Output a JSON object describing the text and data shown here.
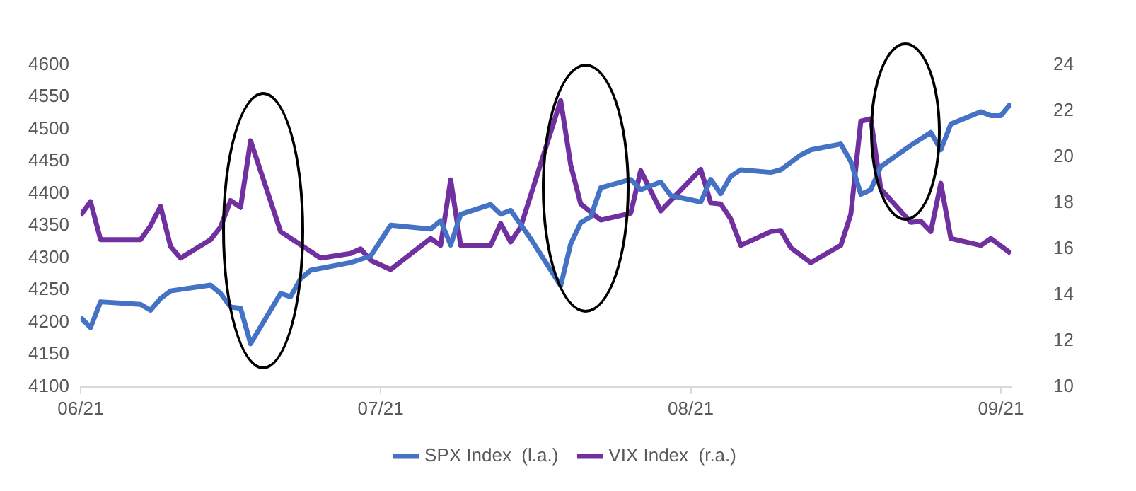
{
  "chart_data": {
    "type": "line",
    "legend": "bottom",
    "grid": false,
    "marker": "none",
    "line_style": "solid",
    "xlim": [
      "2021-06-01",
      "2021-09-02"
    ],
    "xticks": [
      {
        "value": "2021-06-01",
        "label": "06/21"
      },
      {
        "value": "2021-07-01",
        "label": "07/21"
      },
      {
        "value": "2021-08-01",
        "label": "08/21"
      },
      {
        "value": "2021-09-01",
        "label": "09/21"
      }
    ],
    "ylim": [
      4100,
      4600
    ],
    "yticks": [
      4100,
      4150,
      4200,
      4250,
      4300,
      4350,
      4400,
      4450,
      4500,
      4550,
      4600
    ],
    "y2lim": [
      10,
      24
    ],
    "y2ticks": [
      10,
      12,
      14,
      16,
      18,
      20,
      22,
      24
    ],
    "series": [
      {
        "name": "SPX Index  (l.a.)",
        "color": "#4472c4",
        "x": [
          "2021-06-01",
          "2021-06-02",
          "2021-06-03",
          "2021-06-07",
          "2021-06-08",
          "2021-06-09",
          "2021-06-10",
          "2021-06-14",
          "2021-06-15",
          "2021-06-16",
          "2021-06-17",
          "2021-06-18",
          "2021-06-21",
          "2021-06-22",
          "2021-06-23",
          "2021-06-24",
          "2021-06-28",
          "2021-06-30",
          "2021-07-02",
          "2021-07-06",
          "2021-07-07",
          "2021-07-08",
          "2021-07-09",
          "2021-07-12",
          "2021-07-13",
          "2021-07-14",
          "2021-07-16",
          "2021-07-19",
          "2021-07-20",
          "2021-07-21",
          "2021-07-22",
          "2021-07-23",
          "2021-07-26",
          "2021-07-27",
          "2021-07-29",
          "2021-07-30",
          "2021-08-02",
          "2021-08-03",
          "2021-08-04",
          "2021-08-05",
          "2021-08-06",
          "2021-08-09",
          "2021-08-10",
          "2021-08-12",
          "2021-08-13",
          "2021-08-16",
          "2021-08-17",
          "2021-08-18",
          "2021-08-19",
          "2021-08-20",
          "2021-08-23",
          "2021-08-25",
          "2021-08-26",
          "2021-08-27",
          "2021-08-30",
          "2021-08-31",
          "2021-09-01",
          "2021-09-02"
        ],
        "values": [
          4208,
          4192,
          4232,
          4228,
          4219,
          4237,
          4249,
          4258,
          4245,
          4224,
          4222,
          4167,
          4245,
          4240,
          4268,
          4281,
          4293,
          4303,
          4351,
          4345,
          4358,
          4320,
          4368,
          4383,
          4368,
          4374,
          4330,
          4257,
          4322,
          4355,
          4364,
          4409,
          4422,
          4406,
          4418,
          4397,
          4387,
          4422,
          4400,
          4427,
          4437,
          4433,
          4437,
          4460,
          4468,
          4477,
          4450,
          4399,
          4406,
          4442,
          4475,
          4495,
          4468,
          4508,
          4527,
          4521,
          4521,
          4540
        ]
      },
      {
        "name": "VIX Index  (r.a.)",
        "color": "#7030a0",
        "axis": "y2",
        "x": [
          "2021-06-01",
          "2021-06-02",
          "2021-06-03",
          "2021-06-07",
          "2021-06-08",
          "2021-06-09",
          "2021-06-10",
          "2021-06-11",
          "2021-06-14",
          "2021-06-15",
          "2021-06-16",
          "2021-06-17",
          "2021-06-18",
          "2021-06-21",
          "2021-06-25",
          "2021-06-28",
          "2021-06-29",
          "2021-06-30",
          "2021-07-02",
          "2021-07-06",
          "2021-07-07",
          "2021-07-08",
          "2021-07-09",
          "2021-07-12",
          "2021-07-13",
          "2021-07-14",
          "2021-07-15",
          "2021-07-19",
          "2021-07-20",
          "2021-07-21",
          "2021-07-23",
          "2021-07-26",
          "2021-07-27",
          "2021-07-29",
          "2021-08-02",
          "2021-08-03",
          "2021-08-04",
          "2021-08-05",
          "2021-08-06",
          "2021-08-09",
          "2021-08-10",
          "2021-08-11",
          "2021-08-13",
          "2021-08-16",
          "2021-08-17",
          "2021-08-18",
          "2021-08-19",
          "2021-08-20",
          "2021-08-23",
          "2021-08-24",
          "2021-08-25",
          "2021-08-26",
          "2021-08-27",
          "2021-08-30",
          "2021-08-31",
          "2021-09-02"
        ],
        "values": [
          17.45,
          18.05,
          16.4,
          16.4,
          17.0,
          17.85,
          16.1,
          15.6,
          16.4,
          16.95,
          18.1,
          17.8,
          20.7,
          16.75,
          15.6,
          15.8,
          16.0,
          15.5,
          15.1,
          16.45,
          16.15,
          19.0,
          16.15,
          16.15,
          17.1,
          16.3,
          16.95,
          22.45,
          19.65,
          17.95,
          17.25,
          17.55,
          19.4,
          17.65,
          19.45,
          18.0,
          17.95,
          17.3,
          16.15,
          16.75,
          16.8,
          16.05,
          15.4,
          16.15,
          17.5,
          21.55,
          21.65,
          18.6,
          17.15,
          17.2,
          16.75,
          18.85,
          16.45,
          16.15,
          16.45,
          15.8
        ]
      }
    ]
  }
}
